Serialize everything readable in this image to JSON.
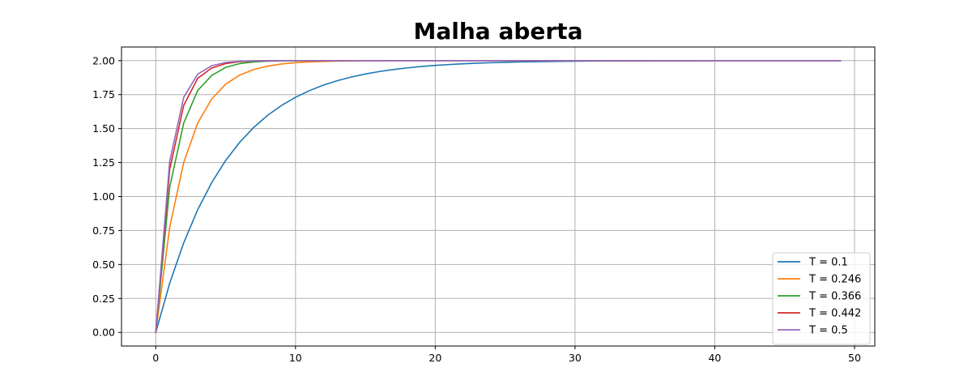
{
  "chart_data": {
    "type": "line",
    "title": "Malha aberta",
    "xlabel": "",
    "ylabel": "",
    "xlim": [
      -2.45,
      51.45
    ],
    "ylim": [
      -0.1,
      2.1
    ],
    "xticks": [
      0,
      10,
      20,
      30,
      40,
      50
    ],
    "yticks": [
      0.0,
      0.25,
      0.5,
      0.75,
      1.0,
      1.25,
      1.5,
      1.75,
      2.0
    ],
    "ytick_labels": [
      "0.00",
      "0.25",
      "0.50",
      "0.75",
      "1.00",
      "1.25",
      "1.50",
      "1.75",
      "2.00"
    ],
    "grid": true,
    "legend_position": "lower-right",
    "x_range": [
      0,
      49
    ],
    "series": [
      {
        "name": "T = 0.1",
        "color": "#1f77b4",
        "values": [
          0.0,
          0.3625,
          0.6594,
          0.9025,
          1.1016,
          1.2647,
          1.3981,
          1.5074,
          1.5969,
          1.6701,
          1.7301,
          1.7792,
          1.8195,
          1.8524,
          1.8794,
          1.9015,
          1.9196,
          1.9344,
          1.9465,
          1.9564,
          1.9645,
          1.9711,
          1.9765,
          1.9809,
          1.9845,
          1.9874,
          1.9898,
          1.9917,
          1.9933,
          1.9946,
          1.9956,
          1.9964,
          1.9971,
          1.9976,
          1.9981,
          1.9984,
          1.9987,
          1.999,
          1.9992,
          1.9993,
          1.9995,
          1.9996,
          1.9997,
          1.9997,
          1.9998,
          1.9998,
          1.9999,
          1.9999,
          1.9999,
          1.9999
        ]
      },
      {
        "name": "T = 0.246",
        "color": "#ff7f0e",
        "values": [
          0.0,
          0.775,
          1.25,
          1.54,
          1.717,
          1.826,
          1.893,
          1.934,
          1.959,
          1.975,
          1.985,
          1.991,
          1.994,
          1.997,
          1.998,
          1.999,
          1.999,
          2.0,
          2.0,
          2.0,
          2.0,
          2.0,
          2.0,
          2.0,
          2.0,
          2.0,
          2.0,
          2.0,
          2.0,
          2.0,
          2.0,
          2.0,
          2.0,
          2.0,
          2.0,
          2.0,
          2.0,
          2.0,
          2.0,
          2.0,
          2.0,
          2.0,
          2.0,
          2.0,
          2.0,
          2.0,
          2.0,
          2.0,
          2.0,
          2.0
        ]
      },
      {
        "name": "T = 0.366",
        "color": "#2ca02c",
        "values": [
          0.0,
          1.07,
          1.54,
          1.78,
          1.89,
          1.95,
          1.978,
          1.99,
          1.996,
          1.998,
          1.999,
          2.0,
          2.0,
          2.0,
          2.0,
          2.0,
          2.0,
          2.0,
          2.0,
          2.0,
          2.0,
          2.0,
          2.0,
          2.0,
          2.0,
          2.0,
          2.0,
          2.0,
          2.0,
          2.0,
          2.0,
          2.0,
          2.0,
          2.0,
          2.0,
          2.0,
          2.0,
          2.0,
          2.0,
          2.0,
          2.0,
          2.0,
          2.0,
          2.0,
          2.0,
          2.0,
          2.0,
          2.0,
          2.0,
          2.0
        ]
      },
      {
        "name": "T = 0.442",
        "color": "#d62728",
        "values": [
          0.0,
          1.2,
          1.67,
          1.87,
          1.945,
          1.978,
          1.992,
          1.997,
          1.999,
          2.0,
          2.0,
          2.0,
          2.0,
          2.0,
          2.0,
          2.0,
          2.0,
          2.0,
          2.0,
          2.0,
          2.0,
          2.0,
          2.0,
          2.0,
          2.0,
          2.0,
          2.0,
          2.0,
          2.0,
          2.0,
          2.0,
          2.0,
          2.0,
          2.0,
          2.0,
          2.0,
          2.0,
          2.0,
          2.0,
          2.0,
          2.0,
          2.0,
          2.0,
          2.0,
          2.0,
          2.0,
          2.0,
          2.0,
          2.0,
          2.0
        ]
      },
      {
        "name": "T = 0.5",
        "color": "#9467bd",
        "values": [
          0.0,
          1.26,
          1.73,
          1.9,
          1.962,
          1.986,
          1.995,
          1.998,
          1.999,
          2.0,
          2.0,
          2.0,
          2.0,
          2.0,
          2.0,
          2.0,
          2.0,
          2.0,
          2.0,
          2.0,
          2.0,
          2.0,
          2.0,
          2.0,
          2.0,
          2.0,
          2.0,
          2.0,
          2.0,
          2.0,
          2.0,
          2.0,
          2.0,
          2.0,
          2.0,
          2.0,
          2.0,
          2.0,
          2.0,
          2.0,
          2.0,
          2.0,
          2.0,
          2.0,
          2.0,
          2.0,
          2.0,
          2.0,
          2.0,
          2.0
        ]
      }
    ]
  }
}
